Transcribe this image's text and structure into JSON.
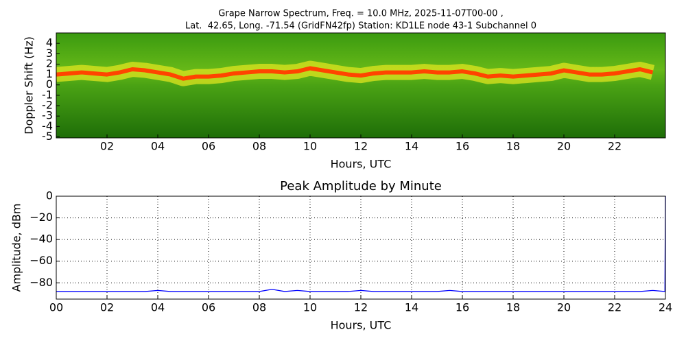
{
  "chart_data": [
    {
      "type": "spectrogram",
      "title": [
        "Grape Narrow Spectrum, Freq. = 10.0 MHz, 2025-11-07T00-00 ,",
        "Lat.  42.65, Long. -71.54 (GridFN42fp) Station: KD1LE node 43-1 Subchannel 0"
      ],
      "xlabel": "Hours, UTC",
      "ylabel": "Doppler Shift (Hz)",
      "x": [
        0,
        0.5,
        1,
        1.5,
        2,
        2.5,
        3,
        3.5,
        4,
        4.5,
        5,
        5.5,
        6,
        6.5,
        7,
        7.5,
        8,
        8.5,
        9,
        9.5,
        10,
        10.5,
        11,
        11.5,
        12,
        12.5,
        13,
        13.5,
        14,
        14.5,
        15,
        15.5,
        16,
        16.5,
        17,
        17.5,
        18,
        18.5,
        19,
        19.5,
        20,
        20.5,
        21,
        21.5,
        22,
        22.5,
        23,
        23.5
      ],
      "series": [
        {
          "color": "#ff4400",
          "values": [
            1.0,
            1.1,
            1.2,
            1.1,
            1.0,
            1.2,
            1.5,
            1.4,
            1.2,
            1.0,
            0.6,
            0.8,
            0.8,
            0.9,
            1.1,
            1.2,
            1.3,
            1.3,
            1.2,
            1.3,
            1.6,
            1.4,
            1.2,
            1.0,
            0.9,
            1.1,
            1.2,
            1.2,
            1.2,
            1.3,
            1.2,
            1.2,
            1.3,
            1.1,
            0.8,
            0.9,
            0.8,
            0.9,
            1.0,
            1.1,
            1.4,
            1.2,
            1.0,
            1.0,
            1.1,
            1.3,
            1.5,
            1.2
          ]
        }
      ],
      "xlim": [
        0,
        24
      ],
      "ylim": [
        -5.1,
        5
      ],
      "xticks": [
        {
          "value": 2,
          "label": "02"
        },
        {
          "value": 4,
          "label": "04"
        },
        {
          "value": 6,
          "label": "06"
        },
        {
          "value": 8,
          "label": "08"
        },
        {
          "value": 10,
          "label": "10"
        },
        {
          "value": 12,
          "label": "12"
        },
        {
          "value": 14,
          "label": "14"
        },
        {
          "value": 16,
          "label": "16"
        },
        {
          "value": 18,
          "label": "18"
        },
        {
          "value": 20,
          "label": "20"
        },
        {
          "value": 22,
          "label": "22"
        }
      ],
      "yticks": [
        -5,
        -4,
        -3,
        -2,
        -1,
        0,
        1,
        2,
        3,
        4
      ],
      "grid": false
    },
    {
      "type": "line",
      "title": "Peak Amplitude by Minute",
      "xlabel": "Hours, UTC",
      "ylabel": "Amplitude, dBm",
      "x": [
        0,
        0.5,
        1,
        1.5,
        2,
        2.5,
        3,
        3.5,
        4,
        4.5,
        5,
        5.5,
        6,
        6.5,
        7,
        7.5,
        8,
        8.5,
        9,
        9.5,
        10,
        10.5,
        11,
        11.5,
        12,
        12.5,
        13,
        13.5,
        14,
        14.5,
        15,
        15.5,
        16,
        16.5,
        17,
        17.5,
        18,
        18.5,
        19,
        19.5,
        20,
        20.5,
        21,
        21.5,
        22,
        22.5,
        23,
        23.5,
        23.98,
        24
      ],
      "series": [
        {
          "color": "#0000ff",
          "values": [
            -88,
            -88,
            -88,
            -88,
            -88,
            -88,
            -88,
            -88,
            -87,
            -88,
            -88,
            -88,
            -88,
            -88,
            -88,
            -88,
            -88,
            -86,
            -88,
            -87,
            -88,
            -88,
            -88,
            -88,
            -87,
            -88,
            -88,
            -88,
            -88,
            -88,
            -88,
            -87,
            -88,
            -88,
            -88,
            -88,
            -88,
            -88,
            -88,
            -88,
            -88,
            -88,
            -88,
            -88,
            -88,
            -88,
            -88,
            -87,
            -88,
            0
          ]
        }
      ],
      "xlim": [
        0,
        24
      ],
      "ylim": [
        -95,
        0
      ],
      "xticks": [
        {
          "value": 0,
          "label": "00"
        },
        {
          "value": 2,
          "label": "02"
        },
        {
          "value": 4,
          "label": "04"
        },
        {
          "value": 6,
          "label": "06"
        },
        {
          "value": 8,
          "label": "08"
        },
        {
          "value": 10,
          "label": "10"
        },
        {
          "value": 12,
          "label": "12"
        },
        {
          "value": 14,
          "label": "14"
        },
        {
          "value": 16,
          "label": "16"
        },
        {
          "value": 18,
          "label": "18"
        },
        {
          "value": 20,
          "label": "20"
        },
        {
          "value": 22,
          "label": "22"
        },
        {
          "value": 24,
          "label": "24"
        }
      ],
      "yticks": [
        {
          "value": -80,
          "label": "−80"
        },
        {
          "value": -60,
          "label": "−60"
        },
        {
          "value": -40,
          "label": "−40"
        },
        {
          "value": -20,
          "label": "−20"
        },
        0
      ],
      "grid": true
    }
  ]
}
